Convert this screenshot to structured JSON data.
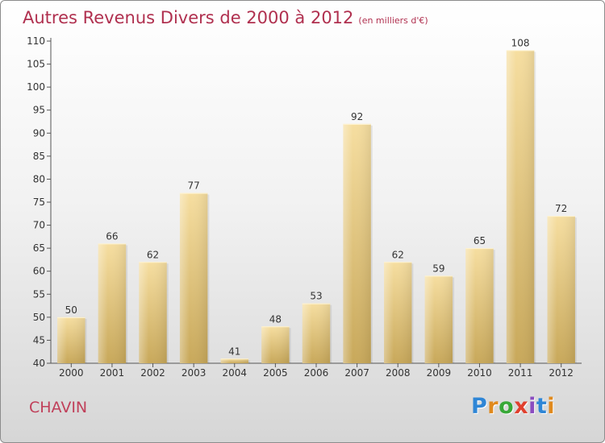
{
  "chart_data": {
    "type": "bar",
    "title": "Autres Revenus Divers de 2000 à 2012",
    "subtitle": "(en milliers d'€)",
    "categories": [
      "2000",
      "2001",
      "2002",
      "2003",
      "2004",
      "2005",
      "2006",
      "2007",
      "2008",
      "2009",
      "2010",
      "2011",
      "2012"
    ],
    "values": [
      50,
      66,
      62,
      77,
      41,
      48,
      53,
      92,
      62,
      59,
      65,
      108,
      72
    ],
    "ylim": [
      40,
      110
    ],
    "yticks": [
      40,
      45,
      50,
      55,
      60,
      65,
      70,
      75,
      80,
      85,
      90,
      95,
      100,
      105,
      110
    ],
    "xlabel": "",
    "ylabel": "",
    "grid": false,
    "bar_color": "#dcbc6c"
  },
  "footer": {
    "town": "CHAVIN",
    "logo_letters": [
      "P",
      "r",
      "o",
      "x",
      "i",
      "t",
      "i"
    ],
    "logo_colors": [
      "#2f86d6",
      "#e08a1e",
      "#38a838",
      "#e0402e",
      "#8a4cc0",
      "#2f86d6",
      "#e08a1e"
    ]
  }
}
